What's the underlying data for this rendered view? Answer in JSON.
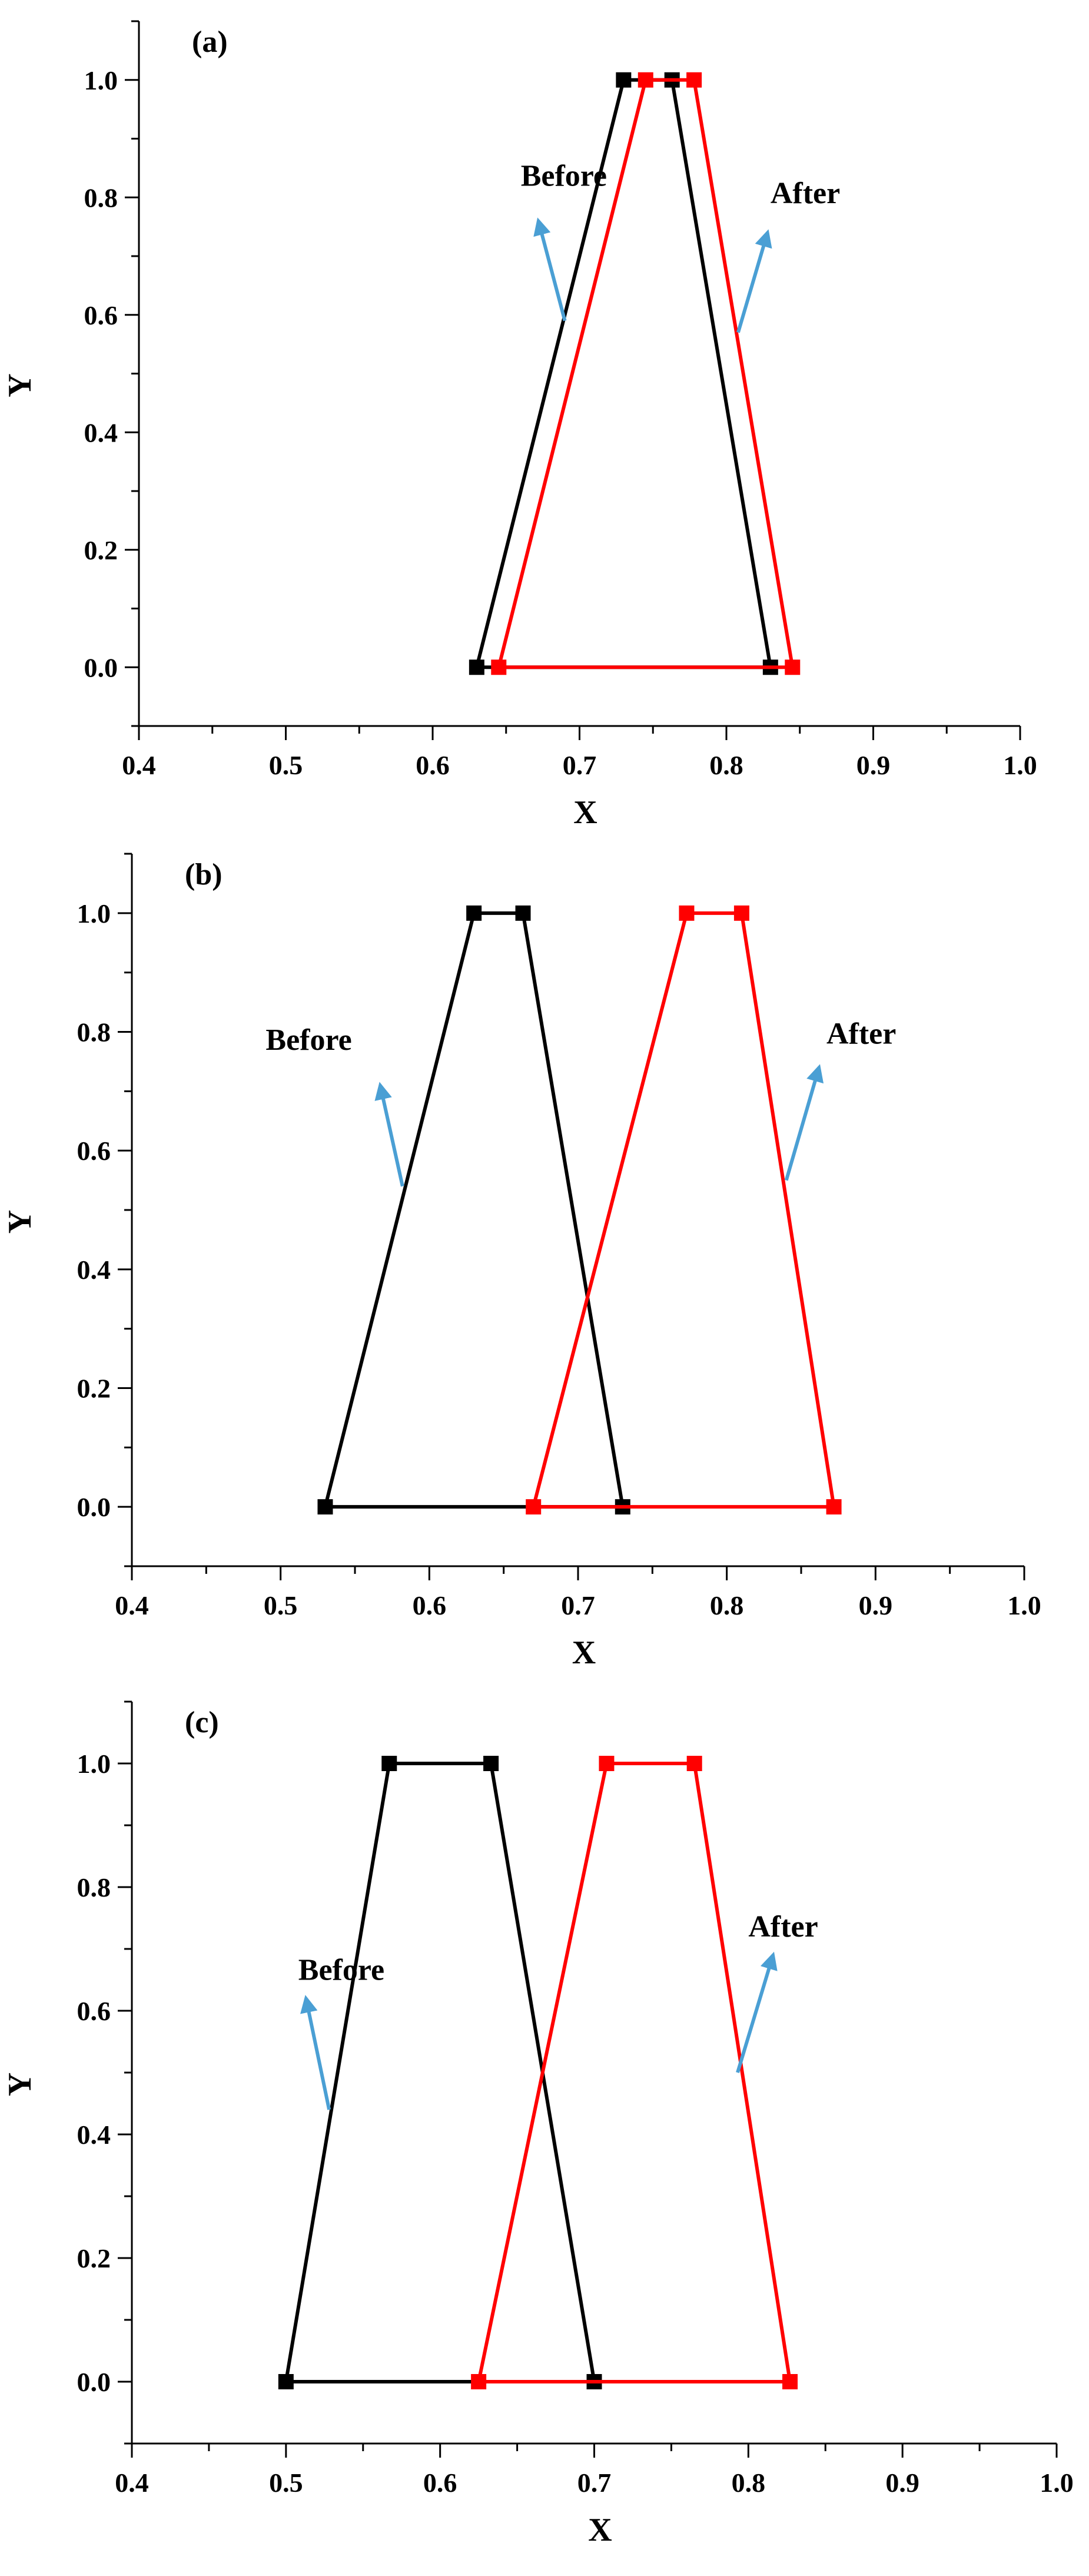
{
  "colors": {
    "before": "#000000",
    "after": "#ff0000",
    "arrow": "#4a9fd4",
    "axis": "#000000"
  },
  "chart_data": [
    {
      "type": "line",
      "panel_label": "(a)",
      "xlabel": "X",
      "ylabel": "Y",
      "xlim": [
        0.4,
        1.0
      ],
      "ylim": [
        -0.1,
        1.1
      ],
      "xticks": [
        "0.4",
        "0.5",
        "0.6",
        "0.7",
        "0.8",
        "0.9",
        "1.0"
      ],
      "yticks": [
        "0.0",
        "0.2",
        "0.4",
        "0.6",
        "0.8",
        "1.0"
      ],
      "series": [
        {
          "name": "Before",
          "color": "#000000",
          "x": [
            0.63,
            0.73,
            0.763,
            0.83,
            0.63
          ],
          "y": [
            0,
            1,
            1,
            0,
            0
          ]
        },
        {
          "name": "After",
          "color": "#ff0000",
          "x": [
            0.645,
            0.745,
            0.778,
            0.845,
            0.645
          ],
          "y": [
            0,
            1,
            1,
            0,
            0
          ]
        }
      ],
      "annotations": [
        {
          "text": "Before",
          "x": 0.66,
          "y": 0.82,
          "arrow_from": [
            0.69,
            0.59
          ],
          "arrow_to": [
            0.672,
            0.76
          ]
        },
        {
          "text": "After",
          "x": 0.83,
          "y": 0.79,
          "arrow_from": [
            0.808,
            0.57
          ],
          "arrow_to": [
            0.828,
            0.74
          ]
        }
      ]
    },
    {
      "type": "line",
      "panel_label": "(b)",
      "xlabel": "X",
      "ylabel": "Y",
      "xlim": [
        0.4,
        1.0
      ],
      "ylim": [
        -0.1,
        1.1
      ],
      "xticks": [
        "0.4",
        "0.5",
        "0.6",
        "0.7",
        "0.8",
        "0.9",
        "1.0"
      ],
      "yticks": [
        "0.0",
        "0.2",
        "0.4",
        "0.6",
        "0.8",
        "1.0"
      ],
      "series": [
        {
          "name": "Before",
          "color": "#000000",
          "x": [
            0.53,
            0.63,
            0.663,
            0.73,
            0.53
          ],
          "y": [
            0,
            1,
            1,
            0,
            0
          ]
        },
        {
          "name": "After",
          "color": "#ff0000",
          "x": [
            0.67,
            0.773,
            0.81,
            0.872,
            0.67
          ],
          "y": [
            0,
            1,
            1,
            0,
            0
          ]
        }
      ],
      "annotations": [
        {
          "text": "Before",
          "x": 0.49,
          "y": 0.77,
          "arrow_from": [
            0.582,
            0.54
          ],
          "arrow_to": [
            0.567,
            0.71
          ]
        },
        {
          "text": "After",
          "x": 0.867,
          "y": 0.78,
          "arrow_from": [
            0.84,
            0.55
          ],
          "arrow_to": [
            0.862,
            0.74
          ]
        }
      ]
    },
    {
      "type": "line",
      "panel_label": "(c)",
      "xlabel": "X",
      "ylabel": "Y",
      "xlim": [
        0.4,
        1.0
      ],
      "ylim": [
        -0.1,
        1.1
      ],
      "xticks": [
        "0.4",
        "0.5",
        "0.6",
        "0.7",
        "0.8",
        "0.9",
        "1.0"
      ],
      "yticks": [
        "0.0",
        "0.2",
        "0.4",
        "0.6",
        "0.8",
        "1.0"
      ],
      "series": [
        {
          "name": "Before",
          "color": "#000000",
          "x": [
            0.5,
            0.567,
            0.633,
            0.7,
            0.5
          ],
          "y": [
            0,
            1,
            1,
            0,
            0
          ]
        },
        {
          "name": "After",
          "color": "#ff0000",
          "x": [
            0.625,
            0.708,
            0.765,
            0.827,
            0.625
          ],
          "y": [
            0,
            1,
            1,
            0,
            0
          ]
        }
      ],
      "annotations": [
        {
          "text": "Before",
          "x": 0.508,
          "y": 0.65,
          "arrow_from": [
            0.528,
            0.44
          ],
          "arrow_to": [
            0.513,
            0.62
          ]
        },
        {
          "text": "After",
          "x": 0.8,
          "y": 0.72,
          "arrow_from": [
            0.793,
            0.5
          ],
          "arrow_to": [
            0.816,
            0.69
          ]
        }
      ]
    }
  ]
}
